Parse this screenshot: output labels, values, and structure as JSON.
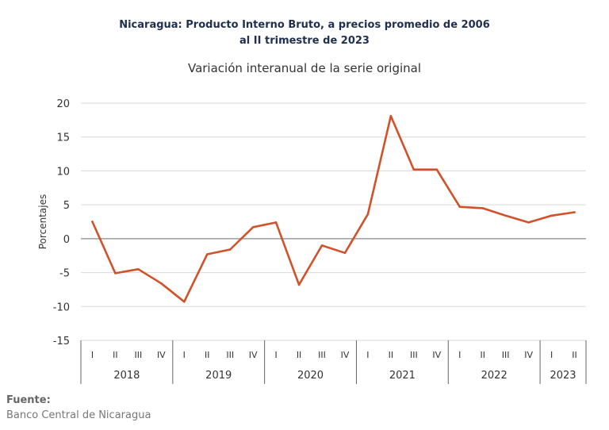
{
  "header": {
    "title_line1": "Nicaragua: Producto Interno Bruto, a precios promedio de 2006",
    "title_line2": "al II trimestre de 2023",
    "subtitle": "Variación interanual de la serie original"
  },
  "footer": {
    "source_label": "Fuente:",
    "source_text": "Banco Central de Nicaragua"
  },
  "chart_data": {
    "type": "line",
    "title": "Nicaragua: Producto Interno Bruto, a precios promedio de 2006 al II trimestre de 2023",
    "subtitle": "Variación interanual de la serie original",
    "ylabel": "Porcentajes",
    "xlabel": "",
    "ylim": [
      -15,
      20
    ],
    "yticks": [
      20,
      15,
      10,
      5,
      0,
      -5,
      -10,
      -15
    ],
    "grid": true,
    "legend": "none",
    "line_color": "#d1522a",
    "years": [
      {
        "label": "2018",
        "quarters": [
          "I",
          "II",
          "III",
          "IV"
        ]
      },
      {
        "label": "2019",
        "quarters": [
          "I",
          "II",
          "III",
          "IV"
        ]
      },
      {
        "label": "2020",
        "quarters": [
          "I",
          "II",
          "III",
          "IV"
        ]
      },
      {
        "label": "2021",
        "quarters": [
          "I",
          "II",
          "III",
          "IV"
        ]
      },
      {
        "label": "2022",
        "quarters": [
          "I",
          "II",
          "III",
          "IV"
        ]
      },
      {
        "label": "2023",
        "quarters": [
          "I",
          "II"
        ]
      }
    ],
    "values": [
      2.5,
      -5.1,
      -4.5,
      -6.6,
      -9.3,
      -2.3,
      -1.6,
      1.7,
      2.4,
      -6.8,
      -1.0,
      -2.1,
      3.6,
      18.1,
      10.2,
      10.2,
      4.7,
      4.5,
      3.4,
      2.4,
      3.4,
      3.9
    ]
  }
}
